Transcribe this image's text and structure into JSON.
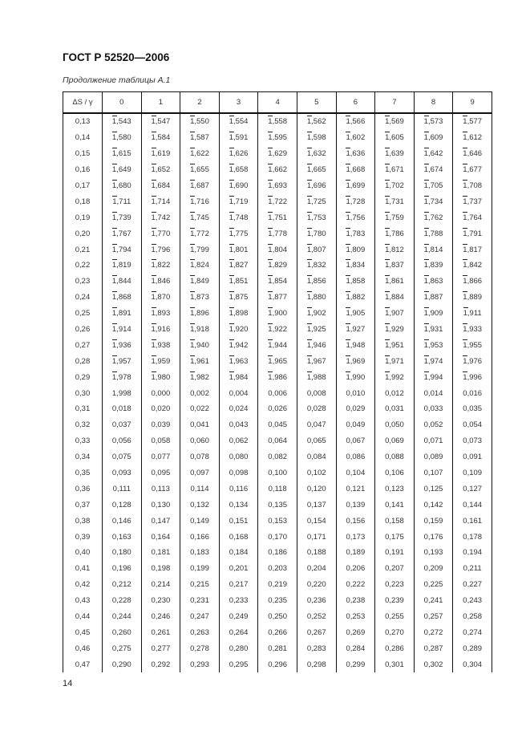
{
  "header": {
    "title": "ГОСТ Р 52520—2006",
    "caption": "Продолжение таблицы А.1"
  },
  "table": {
    "columns": [
      "ΔS / γ",
      "0",
      "1",
      "2",
      "3",
      "4",
      "5",
      "6",
      "7",
      "8",
      "9"
    ],
    "rows": [
      {
        "key": "0,13",
        "overline": true,
        "values": [
          "1,543",
          "1,547",
          "1,550",
          "1,554",
          "1,558",
          "1,562",
          "1,566",
          "1,569",
          "1,573",
          "1,577"
        ]
      },
      {
        "key": "0,14",
        "overline": true,
        "values": [
          "1,580",
          "1,584",
          "1,587",
          "1,591",
          "1,595",
          "1,598",
          "1,602",
          "1,605",
          "1,609",
          "1,612"
        ]
      },
      {
        "key": "0,15",
        "overline": true,
        "values": [
          "1,615",
          "1,619",
          "1,622",
          "1,626",
          "1,629",
          "1,632",
          "1,636",
          "1,639",
          "1,642",
          "1,646"
        ]
      },
      {
        "key": "0,16",
        "overline": true,
        "values": [
          "1,649",
          "1,652",
          "1,655",
          "1,658",
          "1,662",
          "1,665",
          "1,668",
          "1,671",
          "1,674",
          "1,677"
        ]
      },
      {
        "key": "0,17",
        "overline": true,
        "values": [
          "1,680",
          "1,684",
          "1,687",
          "1,690",
          "1,693",
          "1,696",
          "1,699",
          "1,702",
          "1,705",
          "1,708"
        ]
      },
      {
        "key": "0,18",
        "overline": true,
        "values": [
          "1,711",
          "1,714",
          "1,716",
          "1,719",
          "1,722",
          "1,725",
          "1,728",
          "1,731",
          "1,734",
          "1,737"
        ]
      },
      {
        "key": "0,19",
        "overline": true,
        "values": [
          "1,739",
          "1,742",
          "1,745",
          "1,748",
          "1,751",
          "1,753",
          "1,756",
          "1,759",
          "1,762",
          "1,764"
        ]
      },
      {
        "key": "0,20",
        "overline": true,
        "values": [
          "1,767",
          "1,770",
          "1,772",
          "1,775",
          "1,778",
          "1,780",
          "1,783",
          "1,786",
          "1,788",
          "1,791"
        ]
      },
      {
        "key": "0,21",
        "overline": true,
        "values": [
          "1,794",
          "1,796",
          "1,799",
          "1,801",
          "1,804",
          "1,807",
          "1,809",
          "1,812",
          "1,814",
          "1,817"
        ]
      },
      {
        "key": "0,22",
        "overline": true,
        "values": [
          "1,819",
          "1,822",
          "1,824",
          "1,827",
          "1,829",
          "1,832",
          "1,834",
          "1,837",
          "1,839",
          "1,842"
        ]
      },
      {
        "key": "0,23",
        "overline": true,
        "values": [
          "1,844",
          "1,846",
          "1,849",
          "1,851",
          "1,854",
          "1,856",
          "1,858",
          "1,861",
          "1,863",
          "1,866"
        ]
      },
      {
        "key": "0,24",
        "overline": true,
        "values": [
          "1,868",
          "1,870",
          "1,873",
          "1,875",
          "1,877",
          "1,880",
          "1,882",
          "1,884",
          "1,887",
          "1,889"
        ]
      },
      {
        "key": "0,25",
        "overline": true,
        "values": [
          "1,891",
          "1,893",
          "1,896",
          "1,898",
          "1,900",
          "1,902",
          "1,905",
          "1,907",
          "1,909",
          "1,911"
        ]
      },
      {
        "key": "0,26",
        "overline": true,
        "values": [
          "1,914",
          "1,916",
          "1,918",
          "1,920",
          "1,922",
          "1,925",
          "1,927",
          "1,929",
          "1,931",
          "1,933"
        ]
      },
      {
        "key": "0,27",
        "overline": true,
        "values": [
          "1,936",
          "1,938",
          "1,940",
          "1,942",
          "1,944",
          "1,946",
          "1,948",
          "1,951",
          "1,953",
          "1,955"
        ]
      },
      {
        "key": "0,28",
        "overline": true,
        "values": [
          "1,957",
          "1,959",
          "1,961",
          "1,963",
          "1,965",
          "1,967",
          "1,969",
          "1,971",
          "1,974",
          "1,976"
        ]
      },
      {
        "key": "0,29",
        "overline": true,
        "values": [
          "1,978",
          "1,980",
          "1,982",
          "1,984",
          "1,986",
          "1,988",
          "1,990",
          "1,992",
          "1,994",
          "1,996"
        ]
      },
      {
        "key": "0,30",
        "overline": false,
        "values": [
          "1,998",
          "0,000",
          "0,002",
          "0,004",
          "0,006",
          "0,008",
          "0,010",
          "0,012",
          "0,014",
          "0,016"
        ]
      },
      {
        "key": "0,31",
        "overline": false,
        "values": [
          "0,018",
          "0,020",
          "0,022",
          "0,024",
          "0,026",
          "0,028",
          "0,029",
          "0,031",
          "0,033",
          "0,035"
        ]
      },
      {
        "key": "0,32",
        "overline": false,
        "values": [
          "0,037",
          "0,039",
          "0,041",
          "0,043",
          "0,045",
          "0,047",
          "0,049",
          "0,050",
          "0,052",
          "0,054"
        ]
      },
      {
        "key": "0,33",
        "overline": false,
        "values": [
          "0,056",
          "0,058",
          "0,060",
          "0,062",
          "0,064",
          "0,065",
          "0,067",
          "0,069",
          "0,071",
          "0,073"
        ]
      },
      {
        "key": "0,34",
        "overline": false,
        "values": [
          "0,075",
          "0,077",
          "0,078",
          "0,080",
          "0,082",
          "0,084",
          "0,086",
          "0,088",
          "0,089",
          "0,091"
        ]
      },
      {
        "key": "0,35",
        "overline": false,
        "values": [
          "0,093",
          "0,095",
          "0,097",
          "0,098",
          "0,100",
          "0,102",
          "0,104",
          "0,106",
          "0,107",
          "0,109"
        ]
      },
      {
        "key": "0,36",
        "overline": false,
        "values": [
          "0,111",
          "0,113",
          "0,114",
          "0,116",
          "0,118",
          "0,120",
          "0,121",
          "0,123",
          "0,125",
          "0,127"
        ]
      },
      {
        "key": "0,37",
        "overline": false,
        "values": [
          "0,128",
          "0,130",
          "0,132",
          "0,134",
          "0,135",
          "0,137",
          "0,139",
          "0,141",
          "0,142",
          "0,144"
        ]
      },
      {
        "key": "0,38",
        "overline": false,
        "values": [
          "0,146",
          "0,147",
          "0,149",
          "0,151",
          "0,153",
          "0,154",
          "0,156",
          "0,158",
          "0,159",
          "0,161"
        ]
      },
      {
        "key": "0,39",
        "overline": false,
        "values": [
          "0,163",
          "0,164",
          "0,166",
          "0,168",
          "0,170",
          "0,171",
          "0,173",
          "0,175",
          "0,176",
          "0,178"
        ]
      },
      {
        "key": "0,40",
        "overline": false,
        "values": [
          "0,180",
          "0,181",
          "0,183",
          "0,184",
          "0,186",
          "0,188",
          "0,189",
          "0,191",
          "0,193",
          "0,194"
        ]
      },
      {
        "key": "0,41",
        "overline": false,
        "values": [
          "0,196",
          "0,198",
          "0,199",
          "0,201",
          "0,203",
          "0,204",
          "0,206",
          "0,207",
          "0,209",
          "0,211"
        ]
      },
      {
        "key": "0,42",
        "overline": false,
        "values": [
          "0,212",
          "0,214",
          "0,215",
          "0,217",
          "0,219",
          "0,220",
          "0,222",
          "0,223",
          "0,225",
          "0,227"
        ]
      },
      {
        "key": "0,43",
        "overline": false,
        "values": [
          "0,228",
          "0,230",
          "0,231",
          "0,233",
          "0,235",
          "0,236",
          "0,238",
          "0,239",
          "0,241",
          "0,243"
        ]
      },
      {
        "key": "0,44",
        "overline": false,
        "values": [
          "0,244",
          "0,246",
          "0,247",
          "0,249",
          "0,250",
          "0,252",
          "0,253",
          "0,255",
          "0,257",
          "0,258"
        ]
      },
      {
        "key": "0,45",
        "overline": false,
        "values": [
          "0,260",
          "0,261",
          "0,263",
          "0,264",
          "0,266",
          "0,267",
          "0,269",
          "0,270",
          "0,272",
          "0,274"
        ]
      },
      {
        "key": "0,46",
        "overline": false,
        "values": [
          "0,275",
          "0,277",
          "0,278",
          "0,280",
          "0,281",
          "0,283",
          "0,284",
          "0,286",
          "0,287",
          "0,289"
        ]
      },
      {
        "key": "0,47",
        "overline": false,
        "values": [
          "0,290",
          "0,292",
          "0,293",
          "0,295",
          "0,296",
          "0,298",
          "0,299",
          "0,301",
          "0,302",
          "0,304"
        ]
      }
    ]
  },
  "footer": {
    "page_number": "14"
  }
}
